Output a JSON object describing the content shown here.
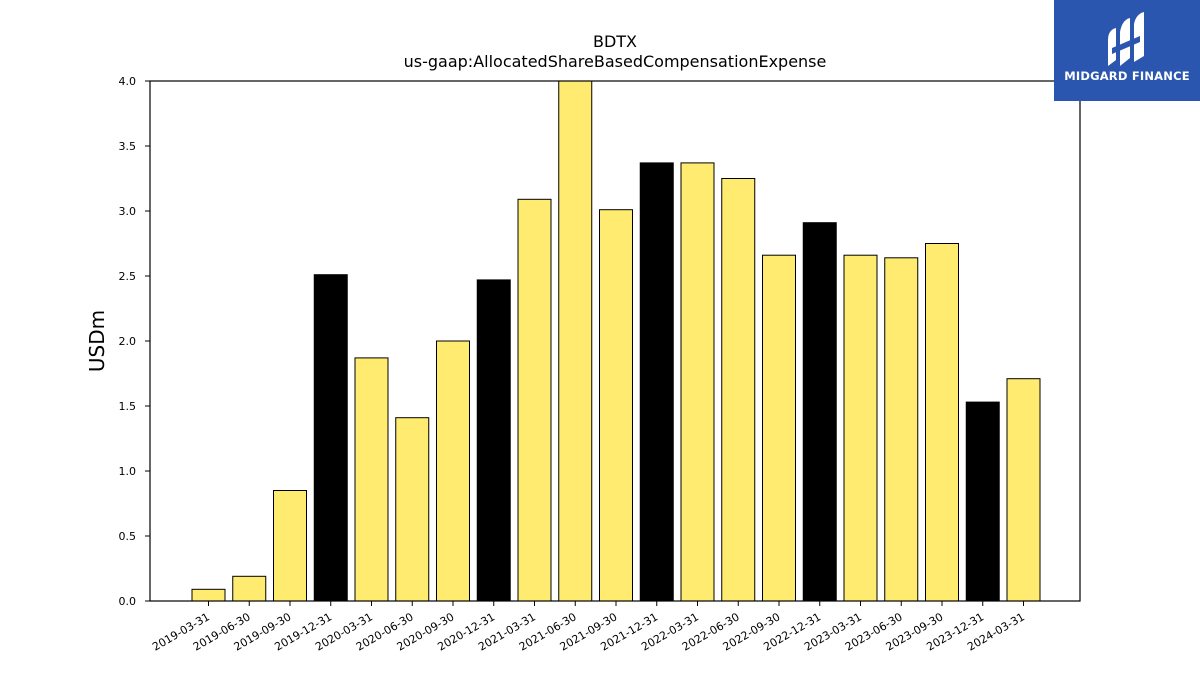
{
  "chart_data": {
    "type": "bar",
    "title": "BDTX",
    "subtitle": "us-gaap:AllocatedShareBasedCompensationExpense",
    "xlabel": "",
    "ylabel": "USDm",
    "ylim": [
      0,
      4.0
    ],
    "yticks": [
      "0.0",
      "0.5",
      "1.0",
      "1.5",
      "2.0",
      "2.5",
      "3.0",
      "3.5",
      "4.0"
    ],
    "categories": [
      "2019-03-31",
      "2019-06-30",
      "2019-09-30",
      "2019-12-31",
      "2020-03-31",
      "2020-06-30",
      "2020-09-30",
      "2020-12-31",
      "2021-03-31",
      "2021-06-30",
      "2021-09-30",
      "2021-12-31",
      "2022-03-31",
      "2022-06-30",
      "2022-09-30",
      "2022-12-31",
      "2023-03-31",
      "2023-06-30",
      "2023-09-30",
      "2023-12-31",
      "2024-03-31"
    ],
    "values": [
      0.09,
      0.19,
      0.85,
      2.51,
      1.87,
      1.41,
      2.0,
      2.47,
      3.09,
      4.05,
      3.01,
      3.37,
      3.37,
      3.25,
      2.66,
      2.91,
      2.66,
      2.64,
      2.75,
      1.53,
      1.71
    ],
    "bar_colors": [
      "#ffeb70",
      "#ffeb70",
      "#ffeb70",
      "#000000",
      "#ffeb70",
      "#ffeb70",
      "#ffeb70",
      "#000000",
      "#ffeb70",
      "#ffeb70",
      "#ffeb70",
      "#000000",
      "#ffeb70",
      "#ffeb70",
      "#ffeb70",
      "#000000",
      "#ffeb70",
      "#ffeb70",
      "#ffeb70",
      "#000000",
      "#ffeb70"
    ],
    "grid": false,
    "legend": false
  },
  "logo": {
    "text": "MIDGARD FINANCE",
    "background": "#2a56b0",
    "icon": "midgard-logo-icon"
  }
}
